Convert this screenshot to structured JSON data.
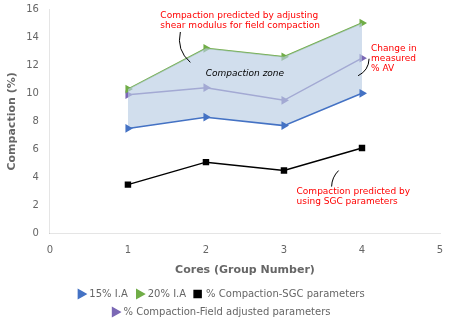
{
  "chart_data": {
    "type": "line",
    "x": [
      1,
      2,
      3,
      4
    ],
    "series": [
      {
        "name": "15% I.A",
        "color": "#4472C4",
        "marker": "triangle-right",
        "values": [
          7.5,
          8.3,
          7.7,
          10.0
        ]
      },
      {
        "name": "20% I.A",
        "color": "#70AD47",
        "marker": "triangle-right",
        "values": [
          10.3,
          13.2,
          12.6,
          15.0
        ]
      },
      {
        "name": "% Compaction-SGC parameters",
        "color": "#000000",
        "marker": "square",
        "values": [
          3.5,
          5.1,
          4.5,
          6.1
        ]
      },
      {
        "name": "% Compaction-Field adjusted parameters",
        "color": "#7B68B5",
        "marker": "triangle-right",
        "values": [
          9.9,
          10.4,
          9.5,
          12.5
        ]
      }
    ],
    "fill": {
      "between": [
        "15% I.A",
        "20% I.A"
      ],
      "color": "#B8CCE4",
      "label": "Compaction zone"
    },
    "xlabel": "Cores (Group Number)",
    "ylabel": "Compaction (%)",
    "xlim": [
      0,
      5
    ],
    "ylim": [
      0,
      16
    ],
    "xticks": [
      0,
      1,
      2,
      3,
      4,
      5
    ],
    "yticks": [
      0,
      2,
      4,
      6,
      8,
      10,
      12,
      14,
      16
    ],
    "annotations": [
      {
        "text": "Compaction predicted by adjusting\nshear modulus for field compaction",
        "x": 1.8,
        "y": 12.2,
        "color": "red"
      },
      {
        "text": "Change in\nmeasured\n% AV",
        "x": 3.95,
        "y": 11.25,
        "color": "red"
      },
      {
        "text": "Compaction predicted by\nusing SGC parameters",
        "x": 3.7,
        "y": 4.5,
        "color": "red"
      }
    ],
    "grid": false,
    "legend": "bottom"
  }
}
